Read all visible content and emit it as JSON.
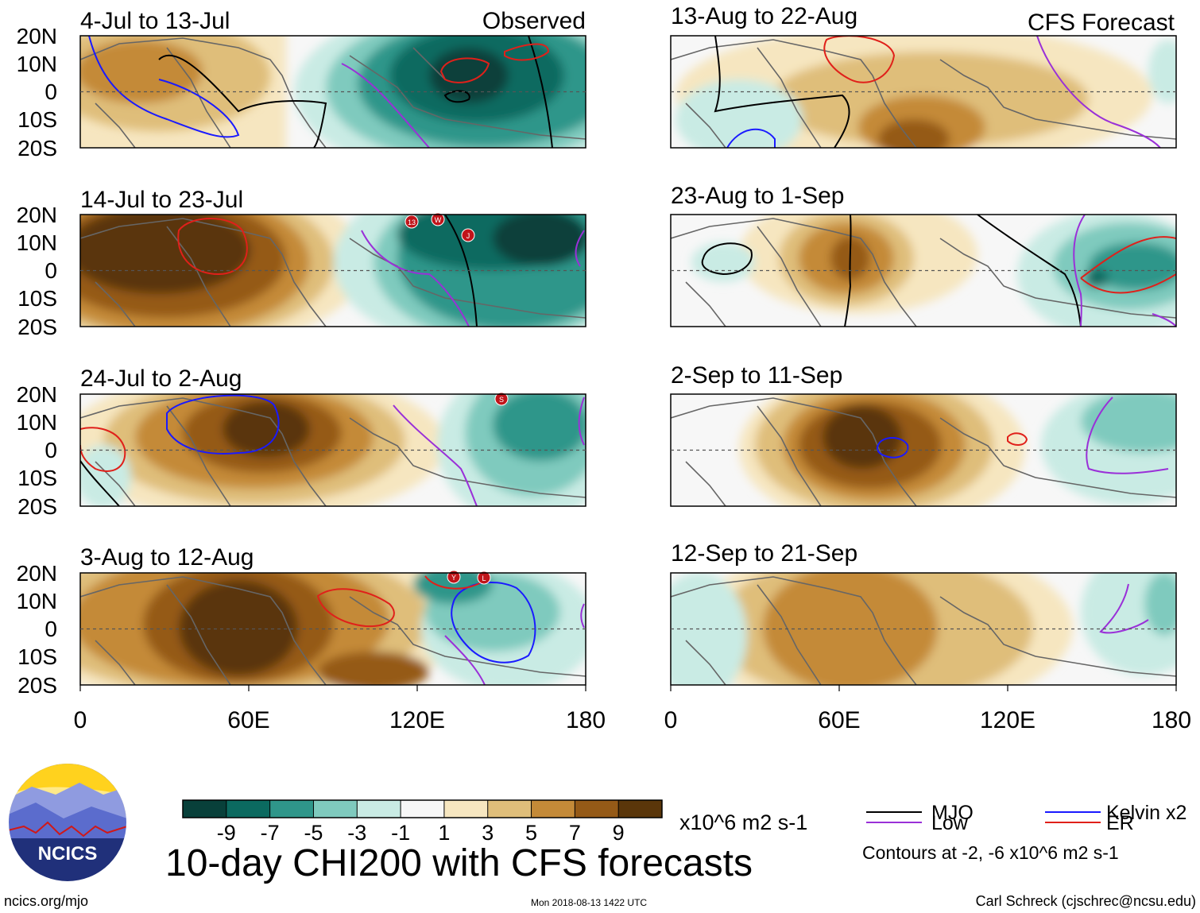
{
  "header": {
    "observed_label": "Observed",
    "forecast_label": "CFS Forecast"
  },
  "panels": {
    "left": [
      {
        "title": "4-Jul to 13-Jul"
      },
      {
        "title": "14-Jul to 23-Jul"
      },
      {
        "title": "24-Jul to 2-Aug"
      },
      {
        "title": "3-Aug to 12-Aug"
      }
    ],
    "right": [
      {
        "title": "13-Aug to 22-Aug"
      },
      {
        "title": "23-Aug to 1-Sep"
      },
      {
        "title": "2-Sep to 11-Sep"
      },
      {
        "title": "12-Sep to 21-Sep"
      }
    ]
  },
  "axes": {
    "lat_ticks": [
      "20N",
      "10N",
      "0",
      "10S",
      "20S"
    ],
    "lon_ticks": [
      "0",
      "60E",
      "120E",
      "180"
    ]
  },
  "storm_markers": [
    {
      "panel": "14-Jul to 23-Jul",
      "label": "13"
    },
    {
      "panel": "14-Jul to 23-Jul",
      "label": "W"
    },
    {
      "panel": "14-Jul to 23-Jul",
      "label": "J"
    },
    {
      "panel": "24-Jul to 2-Aug",
      "label": "S"
    },
    {
      "panel": "3-Aug to 12-Aug",
      "label": "Y"
    },
    {
      "panel": "3-Aug to 12-Aug",
      "label": "L"
    }
  ],
  "colorbar": {
    "tick_labels": [
      "-9",
      "-7",
      "-5",
      "-3",
      "-1",
      "1",
      "3",
      "5",
      "7",
      "9"
    ],
    "units": "x10^6 m2 s-1",
    "colors": [
      "#08403a",
      "#0b6a60",
      "#2f968a",
      "#7fcabe",
      "#c9ebe4",
      "#f7f7f7",
      "#f6e6c0",
      "#dfbe7a",
      "#c48a38",
      "#955a17",
      "#5a360a"
    ]
  },
  "legend": {
    "items": [
      {
        "label": "MJO",
        "color": "#000000"
      },
      {
        "label": "Kelvin x2",
        "color": "#1a1aff"
      },
      {
        "label": "Low",
        "color": "#9a30d8"
      },
      {
        "label": "ER",
        "color": "#e0201a"
      }
    ],
    "contour_note": "Contours at -2, -6 x10^6 m2 s-1"
  },
  "footer": {
    "title": "10-day CHI200 with CFS forecasts",
    "url": "ncics.org/mjo",
    "timestamp": "Mon 2018-08-13 1422 UTC",
    "credit": "Carl Schreck (cjschrec@ncsu.edu)",
    "logo_text": "NCICS"
  }
}
